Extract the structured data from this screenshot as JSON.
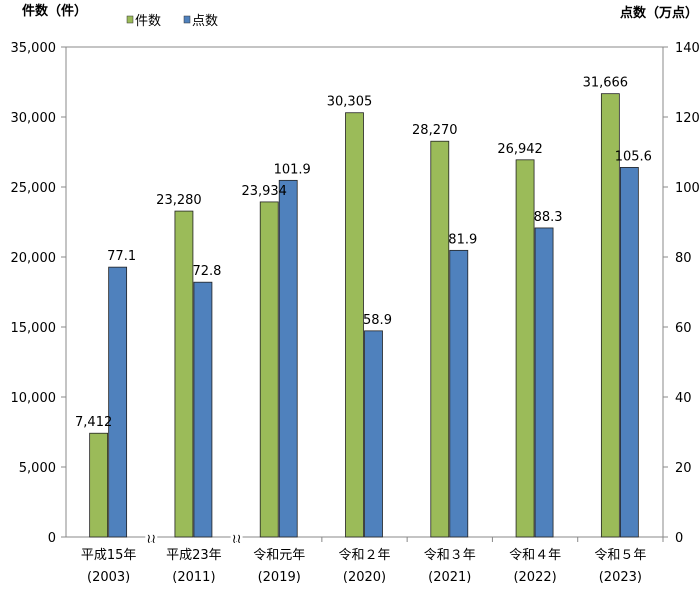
{
  "chart_data": {
    "type": "bar",
    "left_axis_title": "件数（件）",
    "right_axis_title": "点数（万点）",
    "categories": [
      [
        "平成15年",
        "(2003)"
      ],
      [
        "平成23年",
        "(2011)"
      ],
      [
        "令和元年",
        "(2019)"
      ],
      [
        "令和２年",
        "(2020)"
      ],
      [
        "令和３年",
        "(2021)"
      ],
      [
        "令和４年",
        "(2022)"
      ],
      [
        "令和５年",
        "(2023)"
      ]
    ],
    "series": [
      {
        "name": "件数",
        "axis": "left",
        "color": "#9BBB59",
        "values": [
          7412,
          23280,
          23934,
          30305,
          28270,
          26942,
          31666
        ],
        "labels": [
          "7,412",
          "23,280",
          "23,934",
          "30,305",
          "28,270",
          "26,942",
          "31,666"
        ]
      },
      {
        "name": "点数",
        "axis": "right",
        "color": "#4F81BD",
        "values": [
          77.1,
          72.8,
          101.9,
          58.9,
          81.9,
          88.3,
          105.6
        ],
        "labels": [
          "77.1",
          "72.8",
          "101.9",
          "58.9",
          "81.9",
          "88.3",
          "105.6"
        ]
      }
    ],
    "left_ylim": [
      0,
      35000
    ],
    "left_ticks": [
      "0",
      "5,000",
      "10,000",
      "15,000",
      "20,000",
      "25,000",
      "30,000",
      "35,000"
    ],
    "right_ylim": [
      0,
      140
    ],
    "right_ticks": [
      "0",
      "20",
      "40",
      "60",
      "80",
      "100",
      "120",
      "140"
    ],
    "axis_breaks_after": [
      0,
      1
    ],
    "legend": "top-left",
    "grid": false
  }
}
